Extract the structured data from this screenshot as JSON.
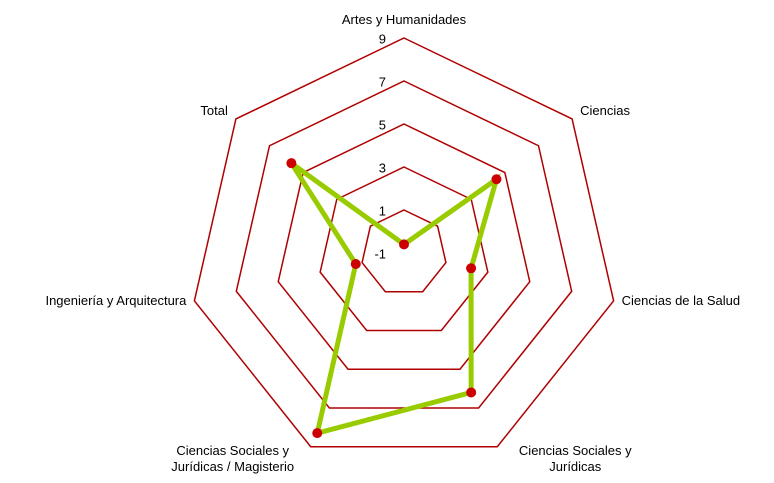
{
  "chart_data": {
    "type": "radar",
    "categories": [
      "Artes y Humanidades",
      "Ciencias",
      "Ciencias de la Salud",
      "Ciencias Sociales y Jurídicas",
      "Ciencias Sociales y Jurídicas / Magisterio",
      "Ingeniería y Arquitectura",
      "Total"
    ],
    "values": [
      -0.6,
      4.5,
      2.2,
      6.2,
      8.3,
      1.3,
      5.7
    ],
    "color": "#99cc00",
    "marker_color": "#cc0000",
    "grid_color": "#b00000",
    "ylim": [
      -1,
      9
    ],
    "yticks": [
      -1,
      1,
      3,
      5,
      7,
      9
    ]
  }
}
